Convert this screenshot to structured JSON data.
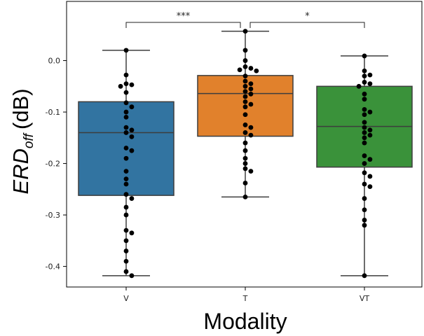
{
  "chart_data": {
    "type": "box",
    "xlabel": "Modality",
    "ylabel": {
      "base": "ERD",
      "sub": "off",
      "unit": "(dB)"
    },
    "ylim": [
      -0.44,
      0.115
    ],
    "yticks": [
      0.0,
      -0.1,
      -0.2,
      -0.3,
      -0.4
    ],
    "ytick_labels": [
      "0.0",
      "-0.1",
      "-0.2",
      "-0.3",
      "-0.4"
    ],
    "grid": false,
    "categories": [
      "V",
      "T",
      "VT"
    ],
    "boxes": [
      {
        "name": "V",
        "color": "#3274a1",
        "whisker_low": -0.418,
        "q1": -0.262,
        "median": -0.14,
        "q3": -0.08,
        "whisker_high": 0.02
      },
      {
        "name": "T",
        "color": "#e1812c",
        "whisker_low": -0.265,
        "q1": -0.147,
        "median": -0.064,
        "q3": -0.029,
        "whisker_high": 0.057
      },
      {
        "name": "VT",
        "color": "#3a923a",
        "whisker_low": -0.418,
        "q1": -0.207,
        "median": -0.128,
        "q3": -0.05,
        "whisker_high": 0.009
      }
    ],
    "points": [
      {
        "category": "V",
        "values": [
          0.02,
          -0.028,
          -0.045,
          -0.047,
          -0.05,
          -0.062,
          -0.082,
          -0.09,
          -0.1,
          -0.11,
          -0.13,
          -0.135,
          -0.14,
          -0.148,
          -0.17,
          -0.175,
          -0.19,
          -0.215,
          -0.23,
          -0.24,
          -0.26,
          -0.268,
          -0.285,
          -0.3,
          -0.33,
          -0.335,
          -0.35,
          -0.37,
          -0.39,
          -0.41,
          -0.418
        ]
      },
      {
        "category": "T",
        "values": [
          0.057,
          0.02,
          0.0,
          -0.012,
          -0.015,
          -0.018,
          -0.02,
          -0.03,
          -0.04,
          -0.045,
          -0.05,
          -0.055,
          -0.06,
          -0.065,
          -0.07,
          -0.08,
          -0.085,
          -0.09,
          -0.105,
          -0.125,
          -0.13,
          -0.14,
          -0.145,
          -0.16,
          -0.175,
          -0.19,
          -0.2,
          -0.21,
          -0.215,
          -0.238,
          -0.265
        ]
      },
      {
        "category": "VT",
        "values": [
          0.009,
          -0.02,
          -0.028,
          -0.03,
          -0.042,
          -0.045,
          -0.05,
          -0.065,
          -0.075,
          -0.095,
          -0.1,
          -0.105,
          -0.12,
          -0.13,
          -0.135,
          -0.14,
          -0.145,
          -0.15,
          -0.16,
          -0.185,
          -0.192,
          -0.2,
          -0.218,
          -0.225,
          -0.24,
          -0.245,
          -0.268,
          -0.29,
          -0.31,
          -0.32,
          -0.418
        ]
      }
    ],
    "annotations": [
      {
        "from": "V",
        "to": "T",
        "label": "***"
      },
      {
        "from": "T",
        "to": "VT",
        "label": "*"
      }
    ]
  }
}
